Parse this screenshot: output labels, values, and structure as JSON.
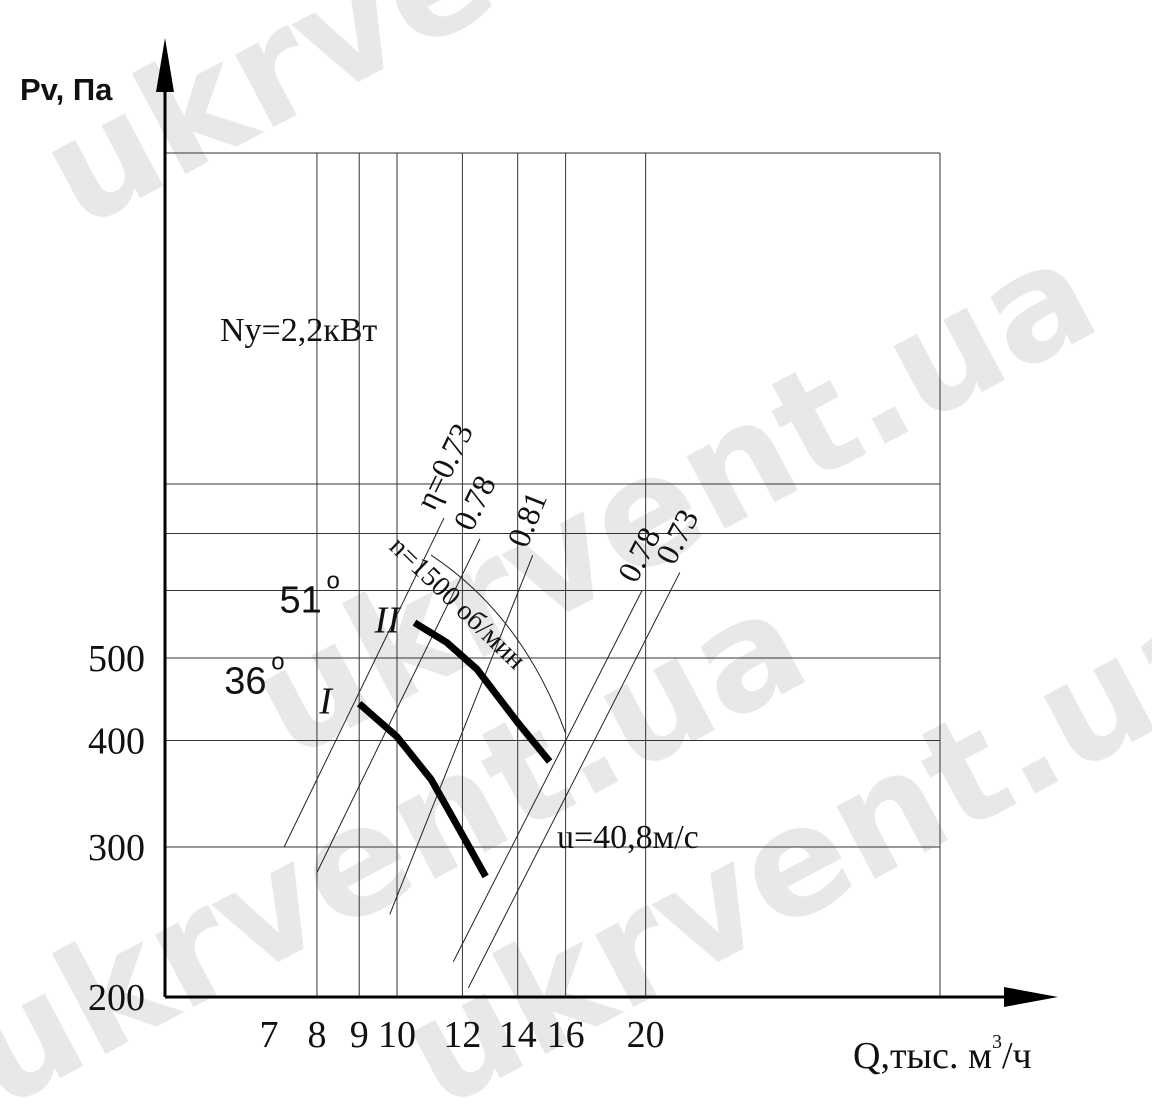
{
  "watermark": "ukrvent.ua",
  "chart_data": {
    "type": "line",
    "xlabel": "Q,тыс. м³/ч",
    "ylabel": "Pv, Па",
    "x_scale": "log",
    "y_scale": "log",
    "xlim": [
      7,
      26
    ],
    "ylim": [
      200,
      900
    ],
    "xticks": [
      7,
      8,
      9,
      10,
      12,
      14,
      16,
      20
    ],
    "yticks": [
      200,
      300,
      400,
      500
    ],
    "tick_labels_x": [
      "7",
      "8",
      "9",
      "10",
      "12",
      "14",
      "16",
      "20"
    ],
    "tick_labels_y": [
      "200",
      "300",
      "400",
      "500"
    ],
    "grid": true,
    "series": [
      {
        "label": "I",
        "angle": "36°",
        "points": [
          [
            9.0,
            442
          ],
          [
            10.0,
            404
          ],
          [
            11.0,
            360
          ],
          [
            12.0,
            310
          ],
          [
            12.8,
            277
          ]
        ]
      },
      {
        "label": "II",
        "angle": "51°",
        "points": [
          [
            10.5,
            550
          ],
          [
            11.5,
            521
          ],
          [
            12.5,
            485
          ],
          [
            14.0,
            420
          ],
          [
            15.3,
            378
          ]
        ]
      }
    ],
    "efficiency_lines": [
      {
        "label": "η=0.73",
        "from": [
          7.3,
          300
        ],
        "to": [
          11.4,
          730
        ]
      },
      {
        "label": "0.78",
        "from": [
          8.0,
          280
        ],
        "to": [
          12.6,
          690
        ]
      },
      {
        "label": "0.81",
        "from": [
          9.8,
          250
        ],
        "to": [
          14.6,
          660
        ]
      },
      {
        "label": "0.78",
        "from": [
          11.7,
          220
        ],
        "to": [
          19.8,
          600
        ]
      },
      {
        "label": "0.73",
        "from": [
          12.2,
          205
        ],
        "to": [
          22.0,
          630
        ]
      }
    ],
    "annotations": {
      "power": "Ny=2,2кВт",
      "speed": "n=1500 об/мин",
      "velocity": "u=40,8м/с"
    }
  }
}
